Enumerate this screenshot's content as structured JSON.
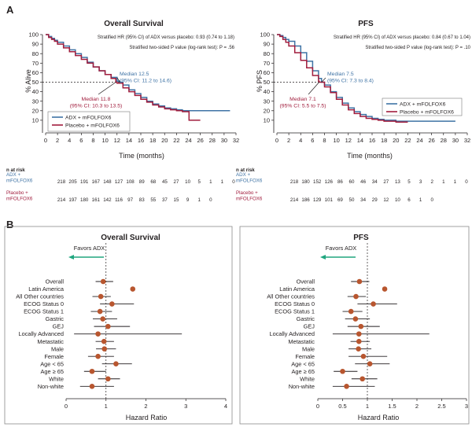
{
  "panels": {
    "a": "A",
    "b": "B"
  },
  "colors": {
    "adx": "#3f73a5",
    "placebo": "#a11d3d",
    "ci": "#231f20",
    "point": "#b8562f",
    "arrow": "#20a67f"
  },
  "risk_header": "n at risk",
  "chart_data": [
    {
      "type": "line",
      "title": "Overall Survival",
      "notes": [
        "Stratified HR (95% CI) of ADX versus placebo: 0.93 (0.74 to 1.18)",
        "Stratified two-sided P value (log-rank test): P = .56"
      ],
      "xlabel": "Time (months)",
      "ylabel": "% Alive",
      "xlim": [
        0,
        32
      ],
      "ylim": [
        0,
        100
      ],
      "xticks": [
        0,
        2,
        4,
        6,
        8,
        10,
        12,
        14,
        16,
        18,
        20,
        22,
        24,
        26,
        28,
        30,
        32
      ],
      "yticks": [
        10,
        20,
        30,
        40,
        50,
        60,
        70,
        80,
        90,
        100
      ],
      "medians": [
        {
          "series": "ADX + mFOLFOX6",
          "lines": [
            "Median 12.5",
            "(95% CI: 11.2 to 14.6)"
          ],
          "x": 12.5
        },
        {
          "series": "Placebo + mFOLFOX6",
          "lines": [
            "Median 11.8",
            "(95% CI: 10.3 to 13.5)"
          ],
          "x": 11.8
        }
      ],
      "series": [
        {
          "name": "ADX + mFOLFOX6",
          "x": [
            0,
            0.5,
            1,
            1.5,
            2,
            3,
            4,
            5,
            6,
            7,
            8,
            9,
            10,
            11,
            12,
            12.5,
            13,
            14,
            15,
            16,
            17,
            18,
            19,
            20,
            21,
            22,
            23,
            24,
            26,
            28,
            30,
            31
          ],
          "y": [
            100,
            98,
            96,
            94,
            92,
            88,
            84,
            80,
            76,
            71,
            66,
            62,
            58,
            55,
            51,
            50,
            47,
            42,
            38,
            34,
            30,
            27,
            25,
            23,
            22,
            21,
            20,
            20,
            20,
            20,
            20,
            20
          ]
        },
        {
          "name": "Placebo + mFOLFOX6",
          "x": [
            0,
            0.5,
            1,
            1.5,
            2,
            3,
            4,
            5,
            6,
            7,
            8,
            9,
            10,
            11,
            11.8,
            12,
            13,
            14,
            15,
            16,
            17,
            18,
            19,
            20,
            21,
            22,
            23,
            24,
            24.1,
            26
          ],
          "y": [
            100,
            97,
            95,
            93,
            90,
            86,
            82,
            78,
            74,
            70,
            66,
            62,
            58,
            54,
            50,
            49,
            44,
            40,
            36,
            32,
            29,
            26,
            24,
            22,
            21,
            20,
            19,
            19,
            10,
            10
          ]
        }
      ],
      "legend": "bottom-left",
      "risk_rows": [
        {
          "label": [
            "ADX +",
            "mFOLFOX6"
          ],
          "values": [
            218,
            205,
            191,
            167,
            148,
            127,
            108,
            89,
            68,
            45,
            27,
            10,
            5,
            1,
            1,
            0
          ]
        },
        {
          "label": [
            "Placebo +",
            "mFOLFOX6"
          ],
          "values": [
            214,
            197,
            180,
            161,
            142,
            116,
            97,
            83,
            55,
            37,
            15,
            9,
            1,
            0
          ]
        }
      ]
    },
    {
      "type": "line",
      "title": "PFS",
      "notes": [
        "Stratified HR (95% CI) of ADX versus placebo: 0.84 (0.67 to 1.04)",
        "Stratified two-sided P value (log-rank test): P = .10"
      ],
      "xlabel": "Time (months)",
      "ylabel": "% PFS",
      "xlim": [
        0,
        32
      ],
      "ylim": [
        0,
        100
      ],
      "xticks": [
        0,
        2,
        4,
        6,
        8,
        10,
        12,
        14,
        16,
        18,
        20,
        22,
        24,
        26,
        28,
        30,
        32
      ],
      "yticks": [
        10,
        20,
        30,
        40,
        50,
        60,
        70,
        80,
        90,
        100
      ],
      "medians": [
        {
          "series": "ADX + mFOLFOX6",
          "lines": [
            "Median 7.5",
            "(95% CI: 7.3 to 8.4)"
          ],
          "x": 7.5
        },
        {
          "series": "Placebo + mFOLFOX6",
          "lines": [
            "Median 7.1",
            "(95% CI: 5.5 to 7.5)"
          ],
          "x": 7.1
        }
      ],
      "series": [
        {
          "name": "ADX + mFOLFOX6",
          "x": [
            0,
            0.5,
            1,
            1.5,
            2,
            3,
            4,
            5,
            6,
            7,
            7.5,
            8,
            9,
            10,
            11,
            12,
            13,
            14,
            15,
            16,
            17,
            18,
            19,
            20,
            22,
            24,
            26,
            28,
            30
          ],
          "y": [
            100,
            99,
            97,
            95,
            93,
            88,
            81,
            72,
            62,
            54,
            50,
            47,
            40,
            34,
            28,
            23,
            19,
            16,
            14,
            12,
            11,
            10,
            10,
            9,
            9,
            9,
            9,
            9,
            9
          ]
        },
        {
          "name": "Placebo + mFOLFOX6",
          "x": [
            0,
            0.5,
            1,
            1.5,
            2,
            3,
            4,
            5,
            6,
            7,
            7.1,
            8,
            9,
            10,
            11,
            12,
            13,
            14,
            15,
            16,
            17,
            18,
            19,
            20,
            21,
            22
          ],
          "y": [
            100,
            98,
            95,
            92,
            88,
            81,
            73,
            65,
            57,
            51,
            50,
            45,
            39,
            32,
            26,
            21,
            17,
            14,
            12,
            11,
            10,
            9,
            9,
            8,
            8,
            8
          ]
        }
      ],
      "legend": "right",
      "risk_rows": [
        {
          "label": [
            "ADX +",
            "mFOLFOX6"
          ],
          "values": [
            218,
            180,
            152,
            126,
            86,
            60,
            46,
            34,
            27,
            13,
            5,
            3,
            2,
            1,
            1,
            0
          ]
        },
        {
          "label": [
            "Placebo +",
            "mFOLFOX6"
          ],
          "values": [
            214,
            186,
            129,
            101,
            69,
            50,
            34,
            29,
            12,
            10,
            6,
            1,
            0
          ]
        }
      ]
    },
    {
      "type": "scatter",
      "title": "Overall Survival",
      "favors": "Favors ADX",
      "xlabel": "Hazard Ratio",
      "xlim": [
        0,
        4
      ],
      "xticks": [
        0,
        1,
        2,
        3,
        4
      ],
      "reference": 1,
      "categories": [
        "Overall",
        "Latin America",
        "All Other countries",
        "ECOG Status 0",
        "ECOG Status 1",
        "Gastric",
        "GEJ",
        "Locally Advanced",
        "Metastatic",
        "Male",
        "Female",
        "Age < 65",
        "Age ≥ 65",
        "White",
        "Non-white"
      ],
      "estimates": [
        0.93,
        1.67,
        0.87,
        1.15,
        0.85,
        0.92,
        1.05,
        0.8,
        0.95,
        0.96,
        0.8,
        1.25,
        0.65,
        1.05,
        0.65
      ],
      "lower": [
        0.74,
        1.67,
        0.66,
        0.85,
        0.62,
        0.67,
        0.7,
        0.2,
        0.74,
        0.75,
        0.55,
        0.9,
        0.45,
        0.8,
        0.35
      ],
      "upper": [
        1.18,
        1.67,
        1.12,
        1.7,
        1.15,
        1.28,
        1.6,
        2.9,
        1.2,
        1.25,
        1.2,
        1.65,
        1.0,
        1.35,
        1.2
      ]
    },
    {
      "type": "scatter",
      "title": "PFS",
      "favors": "Favors ADX",
      "xlabel": "Hazard Ratio",
      "xlim": [
        0,
        3
      ],
      "xticks": [
        0,
        0.5,
        1,
        1.5,
        2,
        2.5,
        3
      ],
      "reference": 1,
      "categories": [
        "Overall",
        "Latin America",
        "All Other countries",
        "ECOG Status 0",
        "ECOG Status 1",
        "Gastric",
        "GEJ",
        "Locally Advanced",
        "Metastatic",
        "Male",
        "Female",
        "Age < 65",
        "Age ≥ 65",
        "White",
        "Non-white"
      ],
      "estimates": [
        0.84,
        1.35,
        0.77,
        1.12,
        0.67,
        0.76,
        0.87,
        0.83,
        0.83,
        0.82,
        0.92,
        1.05,
        0.5,
        0.9,
        0.58
      ],
      "lower": [
        0.67,
        1.35,
        0.6,
        0.8,
        0.5,
        0.55,
        0.6,
        0.3,
        0.66,
        0.62,
        0.62,
        0.75,
        0.32,
        0.68,
        0.3
      ],
      "upper": [
        1.04,
        1.35,
        0.97,
        1.6,
        0.9,
        1.05,
        1.25,
        2.25,
        1.05,
        1.08,
        1.4,
        1.45,
        0.8,
        1.2,
        1.15
      ]
    }
  ]
}
